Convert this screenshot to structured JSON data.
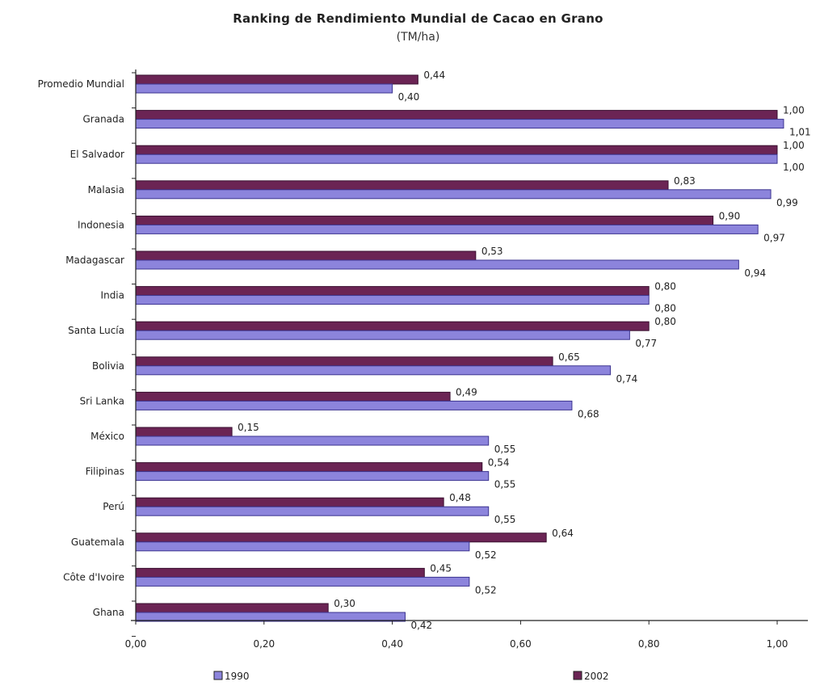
{
  "chart_data": {
    "type": "bar",
    "orientation": "horizontal",
    "title": "Ranking de Rendimiento Mundial de Cacao en Grano",
    "subtitle": "(TM/ha)",
    "categories": [
      "Promedio Mundial",
      "Granada",
      "El Salvador",
      "Malasia",
      "Indonesia",
      "Madagascar",
      "India",
      "Santa Lucía",
      "Bolivia",
      "Sri Lanka",
      "México",
      "Filipinas",
      "Perú",
      "Guatemala",
      "Côte d'Ivoire",
      "Ghana"
    ],
    "series": [
      {
        "name": "2002",
        "color": "#6b2454",
        "values": [
          0.44,
          1.0,
          1.0,
          0.83,
          0.9,
          0.53,
          0.8,
          0.8,
          0.65,
          0.49,
          0.15,
          0.54,
          0.48,
          0.64,
          0.45,
          0.3
        ],
        "labels": [
          "0,44",
          "1,00",
          "1,00",
          "0,83",
          "0,90",
          "0,53",
          "0,80",
          "0,80",
          "0,65",
          "0,49",
          "0,15",
          "0,54",
          "0,48",
          "0,64",
          "0,45",
          "0,30"
        ]
      },
      {
        "name": "1990",
        "color": "#8c84dc",
        "values": [
          0.4,
          1.01,
          1.0,
          0.99,
          0.97,
          0.94,
          0.8,
          0.77,
          0.74,
          0.68,
          0.55,
          0.55,
          0.55,
          0.52,
          0.52,
          0.42
        ],
        "labels": [
          "0,40",
          "1,01",
          "1,00",
          "0,99",
          "0,97",
          "0,94",
          "0,80",
          "0,77",
          "0,74",
          "0,68",
          "0,55",
          "0,55",
          "0,55",
          "0,52",
          "0,52",
          "0,42"
        ]
      }
    ],
    "xlim": [
      0,
      1.0
    ],
    "xticks": [
      0,
      0.2,
      0.4,
      0.6,
      0.8,
      1.0
    ],
    "xtick_labels": [
      "0,00",
      "0,20",
      "0,40",
      "0,60",
      "0,80",
      "1,00"
    ],
    "legend": {
      "placement": "bottom",
      "items": [
        {
          "label": "1990",
          "color": "#8c84dc"
        },
        {
          "label": "2002",
          "color": "#6b2454"
        }
      ]
    },
    "grid": false
  }
}
